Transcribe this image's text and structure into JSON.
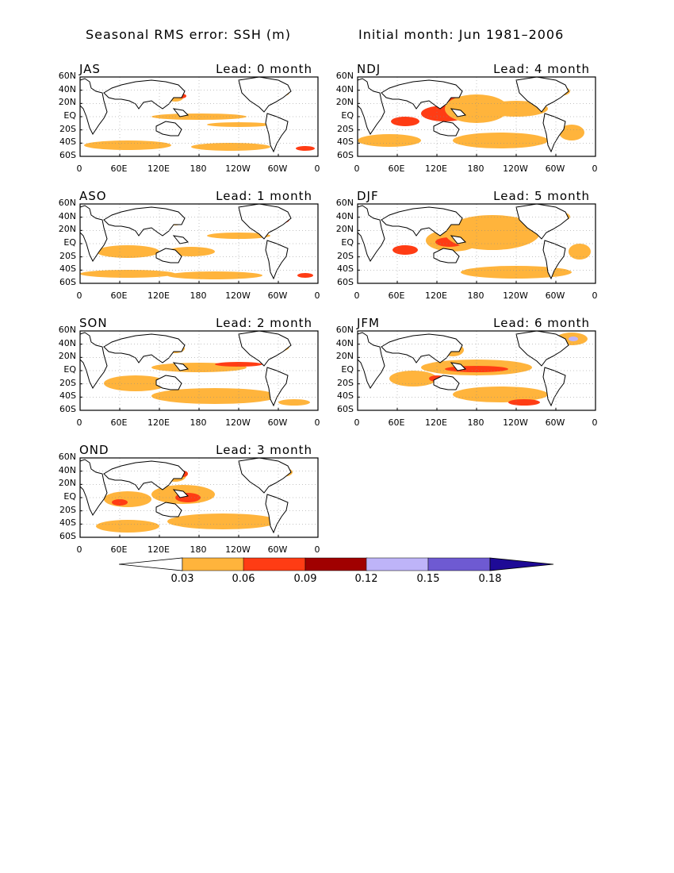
{
  "title_left": "Seasonal RMS error: SSH (m)",
  "title_right": "Initial month: Jun 1981–2006",
  "y_ticks": [
    "60N",
    "40N",
    "20N",
    "EQ",
    "20S",
    "40S",
    "60S"
  ],
  "x_ticks": [
    "0",
    "60E",
    "120E",
    "180",
    "120W",
    "60W",
    "0"
  ],
  "panels": [
    {
      "season": "JAS",
      "lead": "Lead: 0 month"
    },
    {
      "season": "NDJ",
      "lead": "Lead: 4 month"
    },
    {
      "season": "ASO",
      "lead": "Lead: 1 month"
    },
    {
      "season": "DJF",
      "lead": "Lead: 5 month"
    },
    {
      "season": "SON",
      "lead": "Lead: 2 month"
    },
    {
      "season": "JFM",
      "lead": "Lead: 6 month"
    },
    {
      "season": "OND",
      "lead": "Lead: 3 month"
    }
  ],
  "colorbar": {
    "labels": [
      "0.03",
      "0.06",
      "0.09",
      "0.12",
      "0.15",
      "0.18"
    ],
    "colors": [
      "#ffffff",
      "#ffb43c",
      "#ff3c14",
      "#a00000",
      "#beb4f8",
      "#6e5ad2",
      "#1e0a96"
    ]
  }
}
